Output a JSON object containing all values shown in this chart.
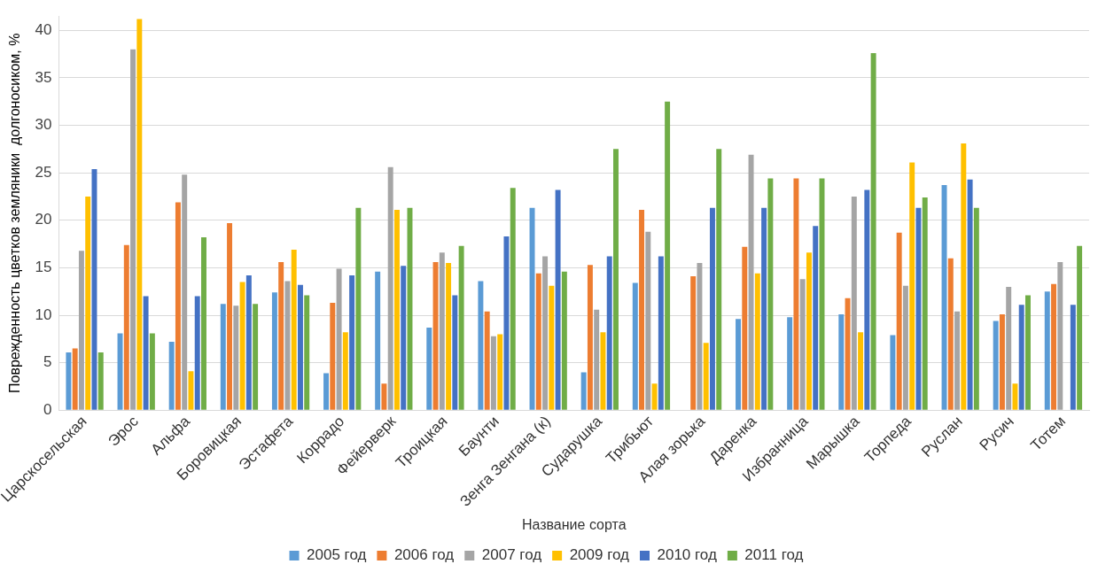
{
  "chart_data": {
    "type": "bar",
    "xlabel": "Название сорта",
    "ylabel": "Поврежденность цветков земляники  долгоносиком, %",
    "categories": [
      "Царскосельская",
      "Эрос",
      "Альфа",
      "Боровицкая",
      "Эстафета",
      "Коррадо",
      "Фейерверк",
      "Троицкая",
      "Баунти",
      "Зенга Зенгана (к)",
      "Сударушка",
      "Трибьют",
      "Алая зорька",
      "Даренка",
      "Избранница",
      "Марышка",
      "Торпеда",
      "Руслан",
      "Русич",
      "Тотем"
    ],
    "series": [
      {
        "name": "2005 год",
        "color": "#5b9bd5",
        "values": [
          6.1,
          8.1,
          7.2,
          11.2,
          12.4,
          3.9,
          14.6,
          8.7,
          13.6,
          21.3,
          4,
          13.4,
          null,
          9.6,
          9.8,
          10.1,
          7.9,
          23.7,
          9.4,
          12.5
        ]
      },
      {
        "name": "2006 год",
        "color": "#ed7d31",
        "values": [
          6.5,
          17.4,
          21.9,
          19.7,
          15.6,
          11.3,
          2.8,
          15.6,
          10.4,
          14.4,
          15.3,
          21.1,
          14.1,
          17.2,
          24.4,
          11.8,
          18.7,
          16,
          10.1,
          13.3
        ]
      },
      {
        "name": "2007 год",
        "color": "#a5a5a5",
        "values": [
          16.8,
          38,
          24.8,
          11,
          13.6,
          14.9,
          25.6,
          16.6,
          7.8,
          16.2,
          10.6,
          18.8,
          15.5,
          26.9,
          13.8,
          22.5,
          13.1,
          10.4,
          13,
          15.6
        ]
      },
      {
        "name": "2009 год",
        "color": "#ffc000",
        "values": [
          22.5,
          41.2,
          4.1,
          13.5,
          16.9,
          8.2,
          21.1,
          15.5,
          8,
          13.1,
          8.2,
          2.8,
          7.1,
          14.4,
          16.6,
          8.2,
          26.1,
          28.1,
          2.8,
          null
        ]
      },
      {
        "name": "2010 год",
        "color": "#4472c4",
        "values": [
          25.4,
          12,
          12,
          14.2,
          13.2,
          14.2,
          15.2,
          12.1,
          18.3,
          23.2,
          16.2,
          16.2,
          21.3,
          21.3,
          19.4,
          23.2,
          21.3,
          24.3,
          11.1,
          11.1
        ]
      },
      {
        "name": "2011 год",
        "color": "#70ad47",
        "values": [
          6.1,
          8.1,
          18.2,
          11.2,
          12.1,
          21.3,
          21.3,
          17.3,
          23.4,
          14.6,
          27.5,
          32.5,
          27.5,
          24.4,
          24.4,
          37.6,
          22.4,
          21.3,
          12.1,
          17.3
        ]
      }
    ],
    "ylim": [
      0,
      41.5
    ],
    "yticks": [
      0,
      5,
      10,
      15,
      20,
      25,
      30,
      35,
      40
    ],
    "grid": "y",
    "legend": "bottom"
  }
}
